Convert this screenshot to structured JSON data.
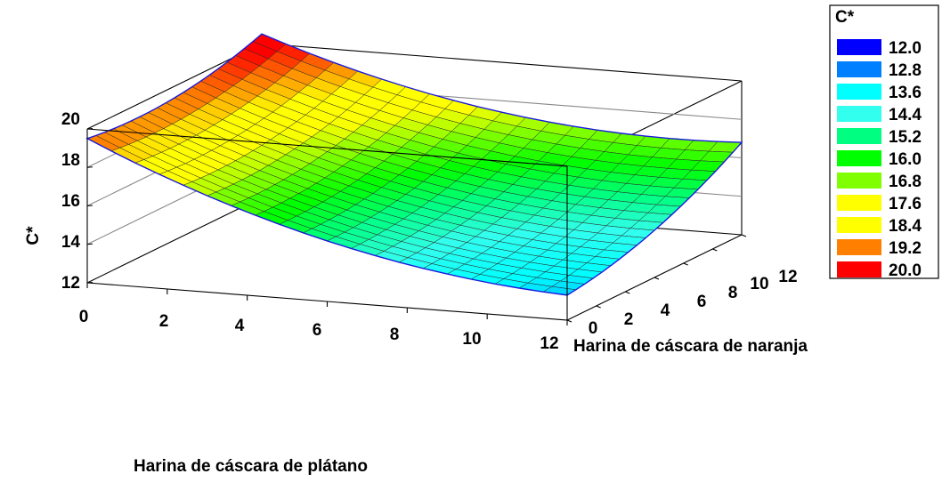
{
  "chart_data": {
    "type": "surface",
    "title": "",
    "xlabel": "Harina de cáscara de plátano",
    "ylabel": "Harina de cáscara de naranja",
    "zlabel": "C*",
    "x_ticks": [
      "0",
      "2",
      "4",
      "6",
      "8",
      "10",
      "12"
    ],
    "y_ticks": [
      "0",
      "2",
      "4",
      "6",
      "8",
      "10",
      "12"
    ],
    "z_ticks": [
      "12",
      "14",
      "16",
      "18",
      "20"
    ],
    "xlim": [
      0,
      12
    ],
    "ylim": [
      0,
      12
    ],
    "zlim": [
      12,
      20
    ],
    "grid_steps": 20,
    "surface_corners": {
      "z_x0_y0": 19.5,
      "z_x12_y0": 13.3,
      "z_x0_y12": 20.5,
      "z_x12_y12": 16.8
    },
    "surface_curvature": {
      "along_x": 5.0,
      "along_y": 2.4
    },
    "legend": {
      "title": "C*",
      "placement": "right",
      "entries": [
        {
          "label": "12.0",
          "color": "#0000ff"
        },
        {
          "label": "12.8",
          "color": "#0080ff"
        },
        {
          "label": "13.6",
          "color": "#00ffff"
        },
        {
          "label": "14.4",
          "color": "#33ffee"
        },
        {
          "label": "15.2",
          "color": "#00ff80"
        },
        {
          "label": "16.0",
          "color": "#00ff00"
        },
        {
          "label": "16.8",
          "color": "#80ff00"
        },
        {
          "label": "17.6",
          "color": "#ffff00"
        },
        {
          "label": "18.4",
          "color": "#ffff00"
        },
        {
          "label": "19.2",
          "color": "#ff8000"
        },
        {
          "label": "20.0",
          "color": "#ff0000"
        }
      ]
    }
  }
}
